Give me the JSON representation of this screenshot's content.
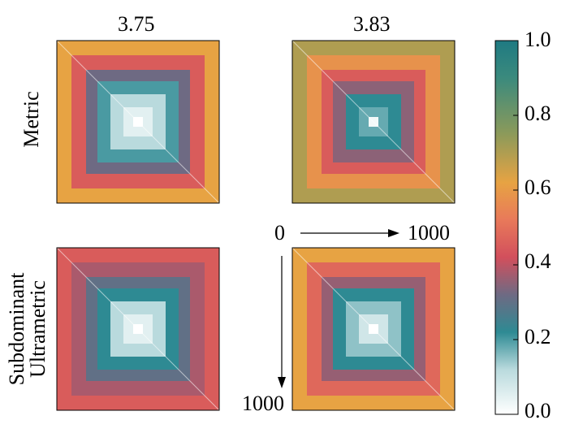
{
  "chart_data": {
    "type": "heatmap",
    "columns": [
      "3.75",
      "3.83"
    ],
    "rows": [
      "Metric",
      "Subdominant Ultrametric"
    ],
    "row_label_lines": [
      [
        "Metric"
      ],
      [
        "Subdominant",
        "Ultrametric"
      ]
    ],
    "index_range": [
      0,
      1000
    ],
    "index_labels": {
      "start": "0",
      "end": "1000"
    },
    "colorbar": {
      "min": 0.0,
      "max": 1.0,
      "ticks": [
        "0.0",
        "0.2",
        "0.4",
        "0.6",
        "0.8",
        "1.0"
      ],
      "stops": [
        {
          "value": 0.0,
          "color": "#ffffff"
        },
        {
          "value": 0.12,
          "color": "#b9dadd"
        },
        {
          "value": 0.22,
          "color": "#2e8a93"
        },
        {
          "value": 0.32,
          "color": "#6e6a83"
        },
        {
          "value": 0.42,
          "color": "#d24f5c"
        },
        {
          "value": 0.52,
          "color": "#e8795a"
        },
        {
          "value": 0.62,
          "color": "#e7a343"
        },
        {
          "value": 0.75,
          "color": "#8c9a5a"
        },
        {
          "value": 0.9,
          "color": "#3b8a7d"
        },
        {
          "value": 1.0,
          "color": "#1f7a82"
        }
      ]
    },
    "panels": [
      {
        "row": "Metric",
        "column": "3.75",
        "levels": [
          0.62,
          0.45,
          0.32,
          0.2,
          0.12,
          0.05,
          0.0
        ]
      },
      {
        "row": "Metric",
        "column": "3.83",
        "levels": [
          0.7,
          0.58,
          0.45,
          0.35,
          0.22,
          0.18,
          0.02
        ]
      },
      {
        "row": "Subdominant Ultrametric",
        "column": "3.75",
        "levels": [
          0.45,
          0.38,
          0.3,
          0.22,
          0.12,
          0.05,
          0.0
        ]
      },
      {
        "row": "Subdominant Ultrametric",
        "column": "3.83",
        "levels": [
          0.62,
          0.48,
          0.36,
          0.22,
          0.15,
          0.08,
          0.0
        ]
      }
    ]
  }
}
